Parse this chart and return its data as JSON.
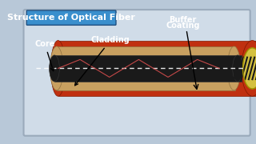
{
  "title": "Structure of Optical Fiber",
  "title_box_color": "#3a8fcd",
  "title_text_color": "#ffffff",
  "bg_color": "#b8c8d8",
  "panel_bg_color": "#d0dce8",
  "panel_border_color": "#9aaabb",
  "core_color": "#1a1a1a",
  "cladding_color": "#c8a060",
  "buffer_color": "#c03010",
  "end_yellow_color": "#d4c040",
  "end_stripe_color": "#1a1a1a",
  "dashed_line_color": "#ffffff",
  "light_line_color": "#e05050",
  "label_core": "Core",
  "label_cladding": "Cladding",
  "label_buffer1": "Buffer",
  "label_buffer2": "Coating",
  "label_color": "#ffffff",
  "label_fontsize": 7,
  "title_fontsize": 8
}
